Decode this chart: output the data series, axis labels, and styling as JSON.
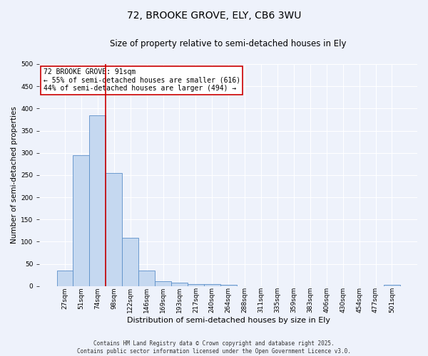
{
  "title_line1": "72, BROOKE GROVE, ELY, CB6 3WU",
  "title_line2": "Size of property relative to semi-detached houses in Ely",
  "xlabel": "Distribution of semi-detached houses by size in Ely",
  "ylabel": "Number of semi-detached properties",
  "categories": [
    "27sqm",
    "51sqm",
    "74sqm",
    "98sqm",
    "122sqm",
    "146sqm",
    "169sqm",
    "193sqm",
    "217sqm",
    "240sqm",
    "264sqm",
    "288sqm",
    "311sqm",
    "335sqm",
    "359sqm",
    "383sqm",
    "406sqm",
    "430sqm",
    "454sqm",
    "477sqm",
    "501sqm"
  ],
  "bar_heights": [
    35,
    295,
    385,
    255,
    108,
    35,
    10,
    7,
    5,
    4,
    3,
    0,
    0,
    0,
    0,
    0,
    0,
    0,
    0,
    0,
    3
  ],
  "bar_color": "#c5d8f0",
  "bar_edge_color": "#5b8fc9",
  "vline_color": "#cc0000",
  "vline_x_index": 2.5,
  "annotation_title": "72 BROOKE GROVE: 91sqm",
  "annotation_line1": "← 55% of semi-detached houses are smaller (616)",
  "annotation_line2": "44% of semi-detached houses are larger (494) →",
  "annotation_box_color": "#ffffff",
  "annotation_box_edge": "#cc0000",
  "ylim": [
    0,
    500
  ],
  "yticks": [
    0,
    50,
    100,
    150,
    200,
    250,
    300,
    350,
    400,
    450,
    500
  ],
  "footer_line1": "Contains HM Land Registry data © Crown copyright and database right 2025.",
  "footer_line2": "Contains public sector information licensed under the Open Government Licence v3.0.",
  "background_color": "#eef2fb",
  "grid_color": "#ffffff",
  "title1_fontsize": 10,
  "title2_fontsize": 8.5,
  "ylabel_fontsize": 7.5,
  "xlabel_fontsize": 8,
  "tick_fontsize": 6.5,
  "annotation_fontsize": 7,
  "footer_fontsize": 5.5
}
